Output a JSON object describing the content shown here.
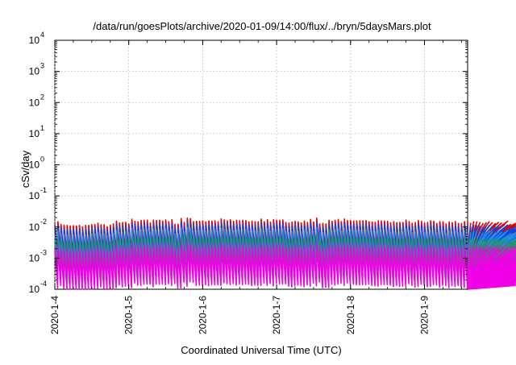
{
  "chart_data": {
    "type": "line",
    "title": "/data/run/goesPlots/archive/2020-01-09/14:00/flux/../bryn/5daysMars.plot",
    "xlabel": "Coordinated Universal Time (UTC)",
    "ylabel": "cSv/day",
    "y_scale": "log",
    "ylim": [
      0.0001,
      10000
    ],
    "xlim": [
      "2020-01-04T00:00",
      "2020-01-09T14:00"
    ],
    "grid": true,
    "legend": "none",
    "x_tick_labels": [
      "2020-1-4",
      "2020-1-5",
      "2020-1-6",
      "2020-1-7",
      "2020-1-8",
      "2020-1-9"
    ],
    "y_tick_labels": [
      {
        "base": "10",
        "exp": "-4"
      },
      {
        "base": "10",
        "exp": "-3"
      },
      {
        "base": "10",
        "exp": "-2"
      },
      {
        "base": "10",
        "exp": "-1"
      },
      {
        "base": "10",
        "exp": "0"
      },
      {
        "base": "10",
        "exp": "1"
      },
      {
        "base": "10",
        "exp": "2"
      },
      {
        "base": "10",
        "exp": "3"
      },
      {
        "base": "10",
        "exp": "4"
      }
    ],
    "series": [
      {
        "color": "#e00000",
        "values": [
          0.0122,
          0.0148,
          0.0121,
          0.0115,
          0.0113,
          0.0108,
          0.0111,
          0.0109,
          0.0113,
          0.0101,
          0.0113,
          0.0113,
          0.0119,
          0.0121,
          0.0133,
          0.0118,
          0.0118,
          0.0103,
          0.0114,
          0.0126,
          0.0155,
          0.0134,
          0.0139,
          0.0142,
          0.0126,
          0.0178,
          0.0152,
          0.0148,
          0.0163,
          0.0164,
          0.0164,
          0.0135,
          0.0165,
          0.0162,
          0.0165,
          0.0155,
          0.0169,
          0.0148,
          0.0172,
          0.0122,
          0.0123,
          0.0188,
          0.0141,
          0.0195,
          0.0187,
          0.0148,
          0.0153,
          0.0152,
          0.0157,
          0.0146,
          0.0157,
          0.0155,
          0.0158,
          0.0149,
          0.0181,
          0.0168,
          0.0158,
          0.017,
          0.0153,
          0.0164,
          0.0158,
          0.0166,
          0.0161,
          0.0147,
          0.0155,
          0.0148,
          0.0148,
          0.0179,
          0.0149,
          0.0172,
          0.0144,
          0.0172,
          0.0165,
          0.0164,
          0.0169,
          0.0141,
          0.0134,
          0.0144,
          0.0152,
          0.0146,
          0.0135,
          0.0155,
          0.0141,
          0.0176,
          0.0145,
          0.0193,
          0.0126,
          0.0131,
          0.0126,
          0.0164,
          0.0153,
          0.0164,
          0.0175,
          0.0149,
          0.018,
          0.0161,
          0.0163,
          0.0156,
          0.0156,
          0.0158,
          0.0158,
          0.0162,
          0.0148,
          0.0145,
          0.0142,
          0.0159,
          0.0157,
          0.0156,
          0.0152,
          0.0137,
          0.0148,
          0.0138,
          0.0141,
          0.0141,
          0.0168,
          0.015,
          0.0131,
          0.0139,
          0.0162,
          0.0152,
          0.0134,
          0.0139,
          0.0158,
          0.0153,
          0.013,
          0.0149,
          0.0148,
          0.0126,
          0.0146,
          0.0138,
          0.0149,
          0.013,
          0.0129,
          0.0149,
          0.0154,
          0.0131,
          0.0148,
          0.0145,
          0.0139,
          0.0129,
          0.0136,
          0.0148,
          0.0138,
          0.0129,
          0.014,
          0.0134,
          0.0119,
          0.0153,
          0.0121,
          0.0123,
          0.0138,
          0.0139,
          0.0137,
          0.0153,
          0.0134,
          0.0123,
          0.0128,
          0.0108,
          0.0134,
          0.0122,
          0.011,
          0.0125,
          0.0117,
          0.0134,
          0.0114,
          0.0105,
          0.0118,
          0.0116,
          0.0114,
          0.0122,
          0.0108,
          0.0136,
          0.0125,
          0.0121,
          0.0114,
          0.0112,
          0.0126,
          0.0101,
          0.0104,
          0.0117,
          0.0111,
          0.0113,
          0.0108,
          0.0114,
          0.0113,
          0.0111,
          0.0104,
          0.0101,
          0.0103,
          0.0111,
          0.0124,
          0.0111,
          0.0106,
          0.0106,
          0.0109,
          0.0106,
          0.0113,
          0.0116,
          0.0112,
          0.0125,
          0.0122,
          0.0134,
          0.0124,
          0.0107,
          0.012,
          0.0109,
          0.0108,
          0.0108,
          0.0115,
          0.0107,
          0.0109,
          0.0108,
          0.0116,
          0.0115,
          0.0122,
          0.0117,
          0.0113,
          0.0113,
          0.0105,
          0.0111,
          0.0117,
          0.011,
          0.0118,
          0.0107,
          0.0116,
          0.0121,
          0.0108,
          0.0103,
          0.0127,
          0.0121,
          0.0122,
          0.0125,
          0.0123,
          0.0136,
          0.0124,
          0.0125,
          0.0124,
          0.0125,
          0.0126,
          0.0133,
          0.0135,
          0.0136,
          0.0129,
          0.014,
          0.0147,
          0.0151,
          0.0148,
          0.0173,
          0.0171,
          0.0186,
          0.0202,
          0.0216,
          0.0206,
          0.0186,
          0.0196,
          0.0186,
          0.0185,
          0.0178,
          0.0171,
          0.0179,
          0.0172,
          0.0166,
          0.0166,
          0.0168,
          0.0164,
          0.0161,
          0.0154,
          0.0152,
          0.0155,
          0.0145,
          0.0146,
          0.0142,
          0.0137,
          0.0136,
          0.0134,
          0.0125,
          0.0122,
          0.0121,
          0.0117,
          0.0112,
          0.0108,
          0.0102
        ]
      },
      {
        "color": "#0a47e6"
      },
      {
        "color": "#1f8fe0"
      },
      {
        "color": "#1c9a5a"
      },
      {
        "color": "#9a3fb0"
      },
      {
        "color": "#f000e6"
      }
    ]
  }
}
